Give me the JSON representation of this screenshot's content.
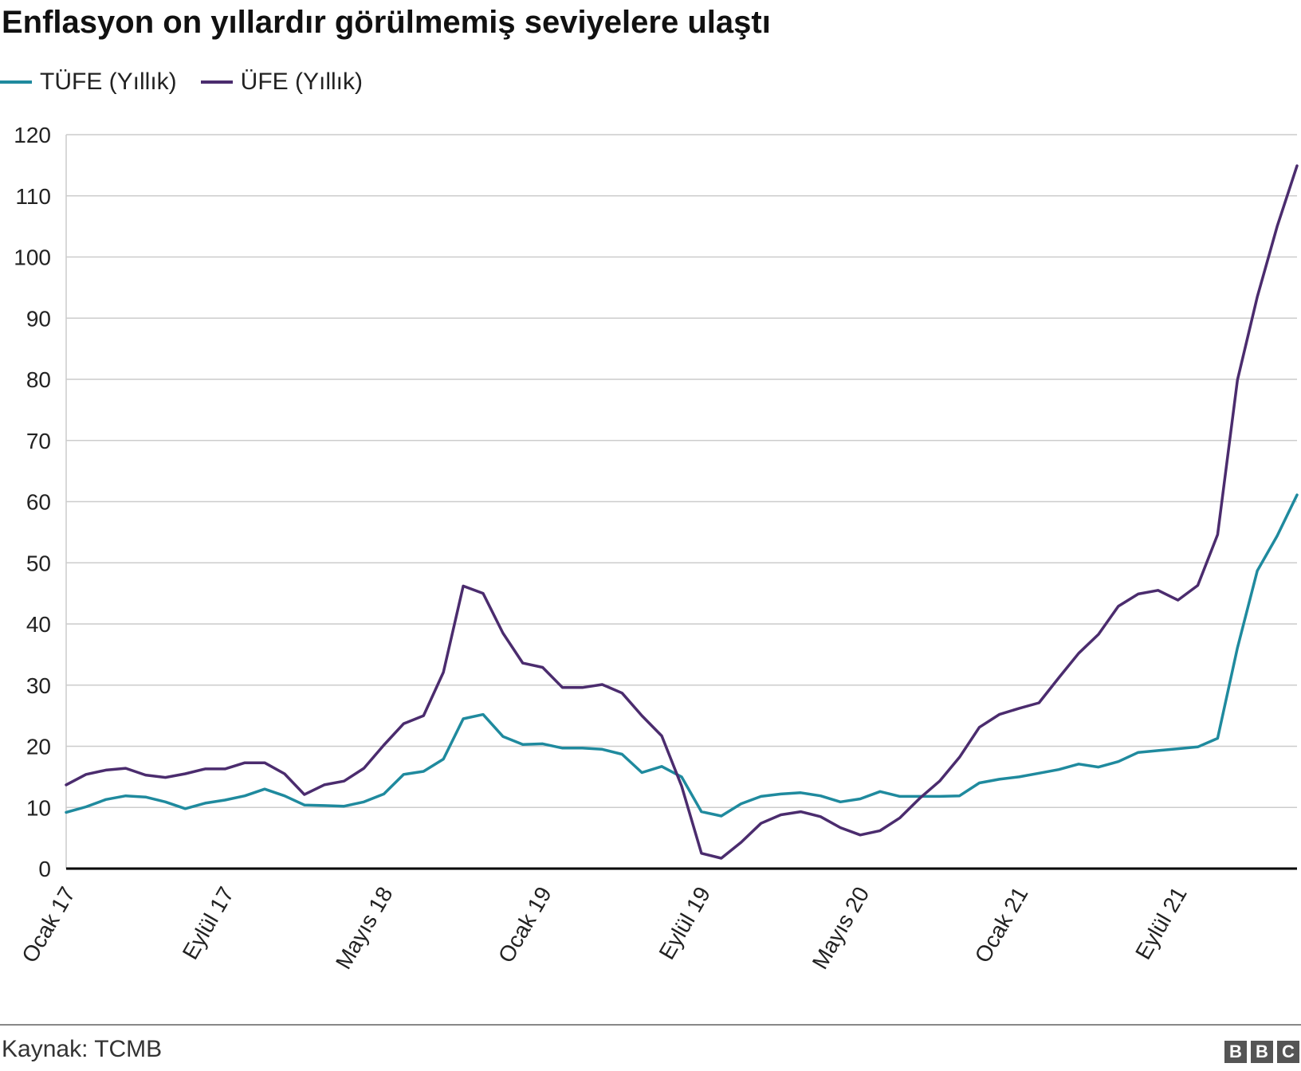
{
  "title": "Enflasyon on yıllardır görülmemiş seviyelere ulaştı",
  "source": "Kaynak: TCMB",
  "logo_letters": [
    "B",
    "B",
    "C"
  ],
  "colors": {
    "tufe": "#1f8a9e",
    "ufe": "#4b2c6e",
    "grid": "#cccccc",
    "axis": "#000000"
  },
  "chart_data": {
    "type": "line",
    "title": "Enflasyon on yıllardır görülmemiş seviyelere ulaştı",
    "xlabel": "",
    "ylabel": "",
    "ylim": [
      0,
      120
    ],
    "yticks": [
      0,
      10,
      20,
      30,
      40,
      50,
      60,
      70,
      80,
      90,
      100,
      110,
      120
    ],
    "grid": true,
    "legend_position": "top-left",
    "x": [
      "2017-01",
      "2017-02",
      "2017-03",
      "2017-04",
      "2017-05",
      "2017-06",
      "2017-07",
      "2017-08",
      "2017-09",
      "2017-10",
      "2017-11",
      "2017-12",
      "2018-01",
      "2018-02",
      "2018-03",
      "2018-04",
      "2018-05",
      "2018-06",
      "2018-07",
      "2018-08",
      "2018-09",
      "2018-10",
      "2018-11",
      "2018-12",
      "2019-01",
      "2019-02",
      "2019-03",
      "2019-04",
      "2019-05",
      "2019-06",
      "2019-07",
      "2019-08",
      "2019-09",
      "2019-10",
      "2019-11",
      "2019-12",
      "2020-01",
      "2020-02",
      "2020-03",
      "2020-04",
      "2020-05",
      "2020-06",
      "2020-07",
      "2020-08",
      "2020-09",
      "2020-10",
      "2020-11",
      "2020-12",
      "2021-01",
      "2021-02",
      "2021-03",
      "2021-04",
      "2021-05",
      "2021-06",
      "2021-07",
      "2021-08",
      "2021-09",
      "2021-10",
      "2021-11",
      "2021-12",
      "2022-01",
      "2022-02",
      "2022-03"
    ],
    "xtick_labels": [
      {
        "label": "Ocak 17",
        "index": 0
      },
      {
        "label": "Eylül 17",
        "index": 8
      },
      {
        "label": "Mayıs 18",
        "index": 16
      },
      {
        "label": "Ocak 19",
        "index": 24
      },
      {
        "label": "Eylül 19",
        "index": 32
      },
      {
        "label": "Mayıs 20",
        "index": 40
      },
      {
        "label": "Ocak 21",
        "index": 48
      },
      {
        "label": "Eylül 21",
        "index": 56
      }
    ],
    "series": [
      {
        "name": "TÜFE (Yıllık)",
        "color": "#1f8a9e",
        "values": [
          9.2,
          10.1,
          11.3,
          11.9,
          11.7,
          10.9,
          9.8,
          10.7,
          11.2,
          11.9,
          13.0,
          11.9,
          10.4,
          10.3,
          10.2,
          10.9,
          12.2,
          15.4,
          15.9,
          17.9,
          24.5,
          25.2,
          21.6,
          20.3,
          20.4,
          19.7,
          19.7,
          19.5,
          18.7,
          15.7,
          16.7,
          15.0,
          9.3,
          8.6,
          10.6,
          11.8,
          12.2,
          12.4,
          11.9,
          10.9,
          11.4,
          12.6,
          11.8,
          11.8,
          11.8,
          11.9,
          14.0,
          14.6,
          15.0,
          15.6,
          16.2,
          17.1,
          16.6,
          17.5,
          19.0,
          19.3,
          19.6,
          19.9,
          21.3,
          36.1,
          48.7,
          54.4,
          61.1
        ]
      },
      {
        "name": "ÜFE (Yıllık)",
        "color": "#4b2c6e",
        "values": [
          13.7,
          15.4,
          16.1,
          16.4,
          15.3,
          14.9,
          15.5,
          16.3,
          16.3,
          17.3,
          17.3,
          15.5,
          12.1,
          13.7,
          14.3,
          16.4,
          20.2,
          23.7,
          25.0,
          32.1,
          46.2,
          45.0,
          38.5,
          33.6,
          32.9,
          29.6,
          29.6,
          30.1,
          28.7,
          25.0,
          21.7,
          13.5,
          2.5,
          1.7,
          4.3,
          7.4,
          8.8,
          9.3,
          8.5,
          6.7,
          5.5,
          6.2,
          8.3,
          11.5,
          14.3,
          18.2,
          23.1,
          25.2,
          26.2,
          27.1,
          31.2,
          35.2,
          38.3,
          42.9,
          44.9,
          45.5,
          43.9,
          46.3,
          54.6,
          79.9,
          93.5,
          105.0,
          114.9
        ]
      }
    ]
  }
}
